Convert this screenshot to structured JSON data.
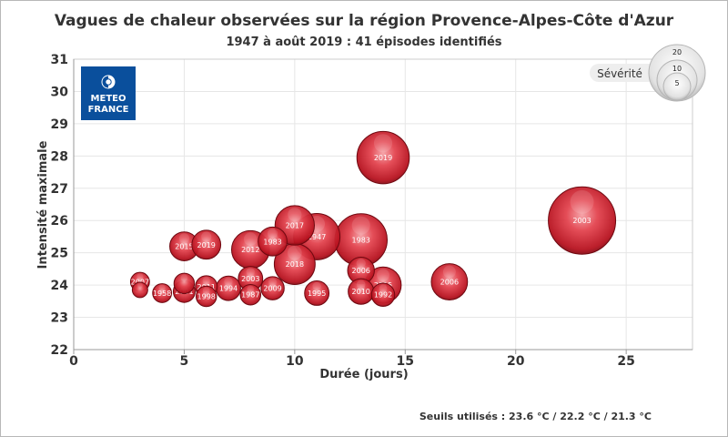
{
  "chart_data": {
    "type": "scatter",
    "title": "Vagues de chaleur observées sur la région Provence-Alpes-Côte d'Azur",
    "subtitle": "1947 à août 2019 : 41 épisodes identifiés",
    "xlabel": "Durée (jours)",
    "ylabel": "Intensité maximale",
    "xlim": [
      0,
      28
    ],
    "ylim": [
      22,
      31
    ],
    "xticks": [
      0,
      5,
      10,
      15,
      20,
      25
    ],
    "yticks": [
      22,
      23,
      24,
      25,
      26,
      27,
      28,
      29,
      30,
      31
    ],
    "grid": true,
    "bubble_color": "#d42a35",
    "points": [
      {
        "x": 3,
        "y": 24.1,
        "size": 3,
        "label": "2007"
      },
      {
        "x": 3,
        "y": 23.85,
        "size": 2,
        "label": ""
      },
      {
        "x": 4,
        "y": 23.75,
        "size": 3,
        "label": "1958"
      },
      {
        "x": 5,
        "y": 24.05,
        "size": 3.5,
        "label": ""
      },
      {
        "x": 5,
        "y": 23.8,
        "size": 4,
        "label": "2001"
      },
      {
        "x": 5,
        "y": 25.2,
        "size": 7,
        "label": "2015"
      },
      {
        "x": 6,
        "y": 23.65,
        "size": 3.5,
        "label": "1998"
      },
      {
        "x": 6,
        "y": 23.95,
        "size": 4,
        "label": "2011"
      },
      {
        "x": 6,
        "y": 25.25,
        "size": 7,
        "label": "2019"
      },
      {
        "x": 7,
        "y": 23.9,
        "size": 5,
        "label": "1994"
      },
      {
        "x": 8,
        "y": 23.7,
        "size": 3.5,
        "label": "1987"
      },
      {
        "x": 8,
        "y": 24.2,
        "size": 5,
        "label": "2003"
      },
      {
        "x": 8,
        "y": 25.1,
        "size": 12,
        "label": "2012"
      },
      {
        "x": 9,
        "y": 25.35,
        "size": 7,
        "label": "1983"
      },
      {
        "x": 9,
        "y": 23.9,
        "size": 4.5,
        "label": "2009"
      },
      {
        "x": 10,
        "y": 25.85,
        "size": 13,
        "label": "2017"
      },
      {
        "x": 10,
        "y": 24.65,
        "size": 14,
        "label": "2018"
      },
      {
        "x": 11,
        "y": 25.5,
        "size": 18,
        "label": "1947"
      },
      {
        "x": 11,
        "y": 23.75,
        "size": 5,
        "label": "1995"
      },
      {
        "x": 13,
        "y": 25.4,
        "size": 23,
        "label": "1983"
      },
      {
        "x": 13,
        "y": 24.45,
        "size": 6,
        "label": "2006"
      },
      {
        "x": 13,
        "y": 23.8,
        "size": 5.5,
        "label": "2010"
      },
      {
        "x": 14,
        "y": 23.7,
        "size": 4.5,
        "label": "1992"
      },
      {
        "x": 14,
        "y": 24,
        "size": 11,
        "label": "2015"
      },
      {
        "x": 14,
        "y": 27.95,
        "size": 23,
        "label": "2019"
      },
      {
        "x": 17,
        "y": 24.1,
        "size": 11,
        "label": "2006"
      },
      {
        "x": 23,
        "y": 26,
        "size": 38,
        "label": "2003"
      }
    ],
    "legend": {
      "title": "Sévérité",
      "placement": "top-right",
      "sizes": [
        20,
        10,
        5
      ]
    }
  },
  "logo_text": [
    "METEO",
    "FRANCE"
  ],
  "footer": "Seuils utilisés : 23.6 °C / 22.2 °C / 21.3 °C",
  "colors": {
    "logo_blue": "#0a4f9c",
    "grid": "#e6e6e6",
    "text": "#333333"
  }
}
